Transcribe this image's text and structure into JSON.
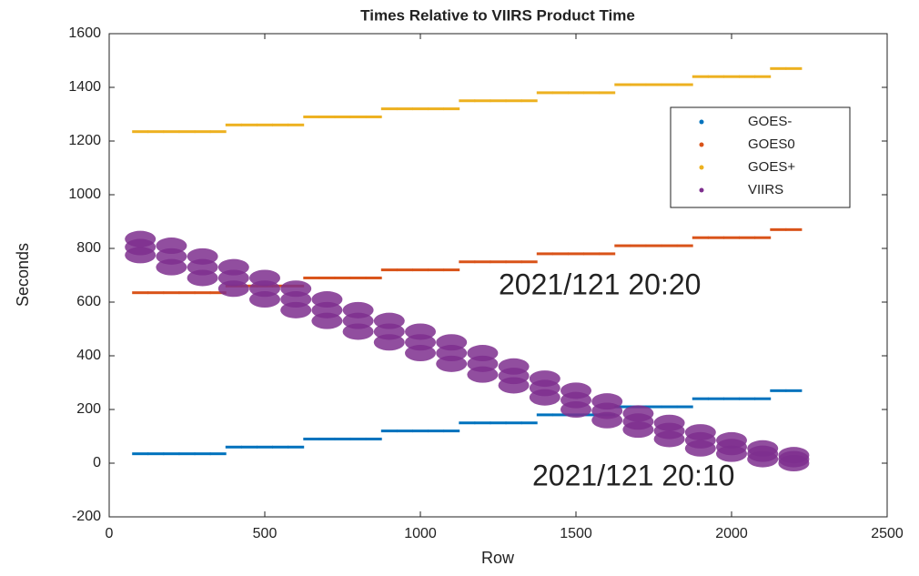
{
  "chart_data": {
    "type": "scatter",
    "title": "Times Relative to VIIRS Product Time",
    "x_label": "Row",
    "y_label": "Seconds",
    "xlim": [
      0,
      2500
    ],
    "xticks": [
      0,
      500,
      1000,
      1500,
      2000,
      2500
    ],
    "ylim": [
      -200,
      1600
    ],
    "yticks": [
      -200,
      0,
      200,
      400,
      600,
      800,
      1000,
      1200,
      1400,
      1600
    ],
    "legend": "upper right",
    "annotations": [
      {
        "text": "2021/121 20:20",
        "color": "#e8302a"
      },
      {
        "text": "2021/121 20:10",
        "color": "#7e2f8e"
      }
    ],
    "series": [
      {
        "name": "GOES-",
        "color": "#0072bd",
        "x": [
          100,
          150,
          200,
          250,
          300,
          350,
          400,
          450,
          500,
          550,
          600,
          650,
          700,
          750,
          800,
          850,
          900,
          950,
          1000,
          1050,
          1100,
          1150,
          1200,
          1250,
          1300,
          1350,
          1400,
          1450,
          1500,
          1550,
          1600,
          1650,
          1700,
          1750,
          1800,
          1850,
          1900,
          1950,
          2000,
          2050,
          2100,
          2150,
          2200
        ],
        "values": [
          35,
          35,
          35,
          35,
          35,
          35,
          60,
          60,
          60,
          60,
          60,
          90,
          90,
          90,
          90,
          90,
          120,
          120,
          120,
          120,
          120,
          150,
          150,
          150,
          150,
          150,
          180,
          180,
          180,
          180,
          180,
          210,
          210,
          210,
          210,
          210,
          240,
          240,
          240,
          240,
          240,
          270,
          270
        ]
      },
      {
        "name": "GOES0",
        "color": "#d95319",
        "x": [
          100,
          150,
          200,
          250,
          300,
          350,
          400,
          450,
          500,
          550,
          600,
          650,
          700,
          750,
          800,
          850,
          900,
          950,
          1000,
          1050,
          1100,
          1150,
          1200,
          1250,
          1300,
          1350,
          1400,
          1450,
          1500,
          1550,
          1600,
          1650,
          1700,
          1750,
          1800,
          1850,
          1900,
          1950,
          2000,
          2050,
          2100,
          2150,
          2200
        ],
        "values": [
          635,
          635,
          635,
          635,
          635,
          635,
          660,
          660,
          660,
          660,
          660,
          690,
          690,
          690,
          690,
          690,
          720,
          720,
          720,
          720,
          720,
          750,
          750,
          750,
          750,
          750,
          780,
          780,
          780,
          780,
          780,
          810,
          810,
          810,
          810,
          810,
          840,
          840,
          840,
          840,
          840,
          870,
          870
        ]
      },
      {
        "name": "GOES+",
        "color": "#edb120",
        "x": [
          100,
          150,
          200,
          250,
          300,
          350,
          400,
          450,
          500,
          550,
          600,
          650,
          700,
          750,
          800,
          850,
          900,
          950,
          1000,
          1050,
          1100,
          1150,
          1200,
          1250,
          1300,
          1350,
          1400,
          1450,
          1500,
          1550,
          1600,
          1650,
          1700,
          1750,
          1800,
          1850,
          1900,
          1950,
          2000,
          2050,
          2100,
          2150,
          2200
        ],
        "values": [
          1235,
          1235,
          1235,
          1235,
          1235,
          1235,
          1260,
          1260,
          1260,
          1260,
          1260,
          1290,
          1290,
          1290,
          1290,
          1290,
          1320,
          1320,
          1320,
          1320,
          1320,
          1350,
          1350,
          1350,
          1350,
          1350,
          1380,
          1380,
          1380,
          1380,
          1380,
          1410,
          1410,
          1410,
          1410,
          1410,
          1440,
          1440,
          1440,
          1440,
          1440,
          1470,
          1470
        ]
      },
      {
        "name": "VIIRS",
        "color": "#7e2f8e",
        "x": [
          100,
          100,
          100,
          200,
          200,
          200,
          300,
          300,
          300,
          400,
          400,
          400,
          500,
          500,
          500,
          600,
          600,
          600,
          700,
          700,
          700,
          800,
          800,
          800,
          900,
          900,
          900,
          1000,
          1000,
          1000,
          1100,
          1100,
          1100,
          1200,
          1200,
          1200,
          1300,
          1300,
          1300,
          1400,
          1400,
          1400,
          1500,
          1500,
          1500,
          1600,
          1600,
          1600,
          1700,
          1700,
          1700,
          1800,
          1800,
          1800,
          1900,
          1900,
          1900,
          2000,
          2000,
          2000,
          2100,
          2100,
          2100,
          2200,
          2200,
          2200
        ],
        "values": [
          835,
          805,
          775,
          810,
          770,
          730,
          770,
          730,
          690,
          730,
          690,
          650,
          690,
          650,
          610,
          650,
          610,
          570,
          610,
          570,
          530,
          570,
          530,
          490,
          530,
          490,
          450,
          490,
          450,
          410,
          450,
          410,
          370,
          410,
          370,
          330,
          360,
          325,
          290,
          315,
          280,
          245,
          270,
          235,
          200,
          230,
          195,
          160,
          185,
          155,
          125,
          150,
          120,
          90,
          115,
          85,
          55,
          85,
          60,
          35,
          55,
          35,
          15,
          30,
          15,
          0
        ]
      }
    ]
  }
}
